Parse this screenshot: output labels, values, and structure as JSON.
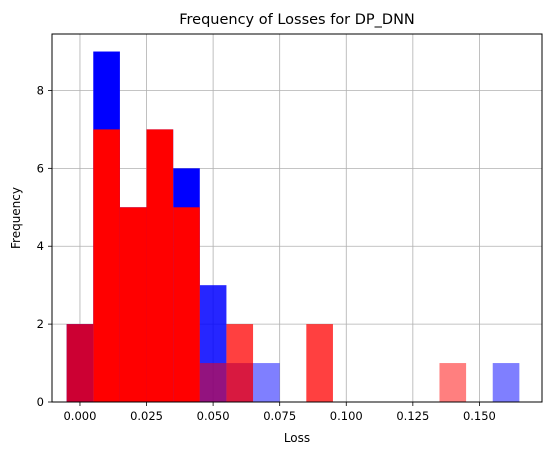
{
  "chart_data": {
    "type": "bar",
    "title": "Frequency of Losses for DP_DNN",
    "xlabel": "Loss",
    "ylabel": "Frequency",
    "xlim": [
      -0.0105,
      0.1735
    ],
    "ylim": [
      0,
      9.45
    ],
    "xticks": [
      0.0,
      0.025,
      0.05,
      0.075,
      0.1,
      0.125,
      0.15
    ],
    "xtick_labels": [
      "0.000",
      "0.025",
      "0.050",
      "0.075",
      "0.100",
      "0.125",
      "0.150"
    ],
    "yticks": [
      0,
      2,
      4,
      6,
      8
    ],
    "ytick_labels": [
      "0",
      "2",
      "4",
      "6",
      "8"
    ],
    "grid": true,
    "legend": "none",
    "bin_width": 0.01,
    "series": [
      {
        "color": "#0000ff",
        "bins": [
          {
            "x0": -0.005,
            "x1": 0.005,
            "count": 2,
            "opacity": 1
          },
          {
            "x0": 0.005,
            "x1": 0.015,
            "count": 9,
            "opacity": 1
          },
          {
            "x0": 0.015,
            "x1": 0.025,
            "count": 5,
            "opacity": 1
          },
          {
            "x0": 0.025,
            "x1": 0.035,
            "count": 7,
            "opacity": 1
          },
          {
            "x0": 0.035,
            "x1": 0.045,
            "count": 6,
            "opacity": 1
          },
          {
            "x0": 0.045,
            "x1": 0.055,
            "count": 3,
            "opacity": 0.85
          },
          {
            "x0": 0.055,
            "x1": 0.065,
            "count": 1,
            "opacity": 0.6
          },
          {
            "x0": 0.065,
            "x1": 0.075,
            "count": 1,
            "opacity": 0.5
          },
          {
            "x0": 0.155,
            "x1": 0.165,
            "count": 1,
            "opacity": 0.5
          }
        ]
      },
      {
        "color": "#ff0000",
        "bins": [
          {
            "x0": -0.005,
            "x1": 0.005,
            "count": 2,
            "opacity": 0.8
          },
          {
            "x0": 0.005,
            "x1": 0.015,
            "count": 7,
            "opacity": 1
          },
          {
            "x0": 0.015,
            "x1": 0.025,
            "count": 5,
            "opacity": 1
          },
          {
            "x0": 0.025,
            "x1": 0.035,
            "count": 7,
            "opacity": 1
          },
          {
            "x0": 0.035,
            "x1": 0.045,
            "count": 5,
            "opacity": 1
          },
          {
            "x0": 0.045,
            "x1": 0.055,
            "count": 1,
            "opacity": 0.5
          },
          {
            "x0": 0.055,
            "x1": 0.065,
            "count": 2,
            "opacity": 0.75
          },
          {
            "x0": 0.085,
            "x1": 0.095,
            "count": 2,
            "opacity": 0.75
          },
          {
            "x0": 0.135,
            "x1": 0.145,
            "count": 1,
            "opacity": 0.5
          }
        ]
      }
    ]
  }
}
